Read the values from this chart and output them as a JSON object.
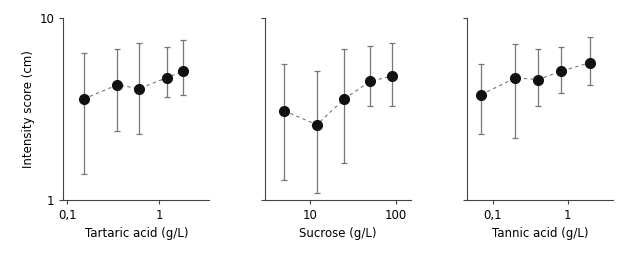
{
  "panel1": {
    "xlabel": "Tartaric acid (g/L)",
    "x": [
      0.15,
      0.35,
      0.6,
      1.2,
      1.8
    ],
    "y": [
      3.6,
      4.3,
      4.1,
      4.7,
      5.1
    ],
    "yerr_lo": [
      2.2,
      1.9,
      1.8,
      1.0,
      1.3
    ],
    "yerr_hi": [
      2.8,
      2.5,
      3.2,
      2.2,
      2.5
    ],
    "xlim": [
      0.09,
      3.5
    ],
    "xticks": [
      0.1,
      1.0
    ],
    "xticklabels": [
      "0,1",
      "1"
    ]
  },
  "panel2": {
    "xlabel": "Sucrose (g/L)",
    "x": [
      5.0,
      12.0,
      25.0,
      50.0,
      90.0
    ],
    "y": [
      3.1,
      2.6,
      3.6,
      4.5,
      4.8
    ],
    "yerr_lo": [
      1.8,
      1.5,
      2.0,
      1.2,
      1.5
    ],
    "yerr_hi": [
      2.5,
      2.5,
      3.2,
      2.5,
      2.5
    ],
    "xlim": [
      3.0,
      150.0
    ],
    "xticks": [
      10,
      100
    ],
    "xticklabels": [
      "10",
      "100"
    ]
  },
  "panel3": {
    "xlabel": "Tannic acid (g/L)",
    "x": [
      0.07,
      0.2,
      0.4,
      0.8,
      2.0
    ],
    "y": [
      3.8,
      4.7,
      4.6,
      5.1,
      5.7
    ],
    "yerr_lo": [
      1.5,
      2.5,
      1.3,
      1.2,
      1.4
    ],
    "yerr_hi": [
      1.8,
      2.5,
      2.2,
      1.8,
      2.2
    ],
    "xlim": [
      0.045,
      4.0
    ],
    "xticks": [
      0.1,
      1.0
    ],
    "xticklabels": [
      "0,1",
      "1"
    ]
  },
  "ylim": [
    1,
    10
  ],
  "yticks": [
    1,
    10
  ],
  "yticklabels": [
    "1",
    "10"
  ],
  "ylabel": "Intensity score (cm)",
  "marker_color": "#111111",
  "line_color": "#777777",
  "marker_size": 7,
  "capsize": 2.5,
  "ecolor": "#777777",
  "elinewidth": 0.9,
  "linewidth": 0.8
}
